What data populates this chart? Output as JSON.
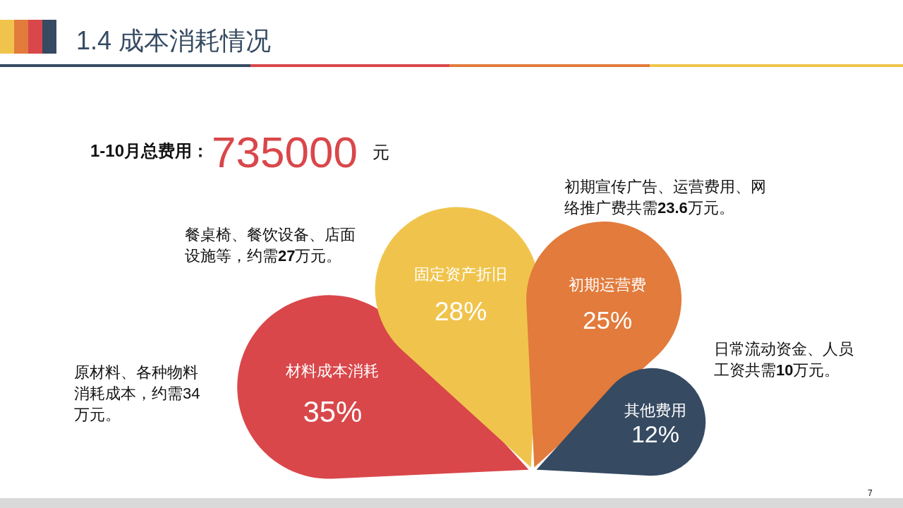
{
  "chart_data": {
    "type": "other",
    "title": "1.4 成本消耗情况",
    "subtitle": "1-10月总费用：735000 元",
    "categories": [
      "材料成本消耗",
      "固定资产折旧",
      "初期运营费",
      "其他费用"
    ],
    "values": [
      35,
      28,
      25,
      12
    ],
    "value_labels": [
      "35%",
      "28%",
      "25%",
      "12%"
    ],
    "colors": [
      "#d9474a",
      "#f0c44c",
      "#e27b3c",
      "#364a62"
    ],
    "annotations": [
      "原材料、各种物料消耗成本，约需34万元。",
      "餐桌椅、餐饮设备、店面设施等，约需**27**万元。",
      "初期宣传广告、运营费用、网络推广费共需**23.6**万元。",
      "日常流动资金、人员工资共需**10**万元。",
      "7"
    ]
  }
}
